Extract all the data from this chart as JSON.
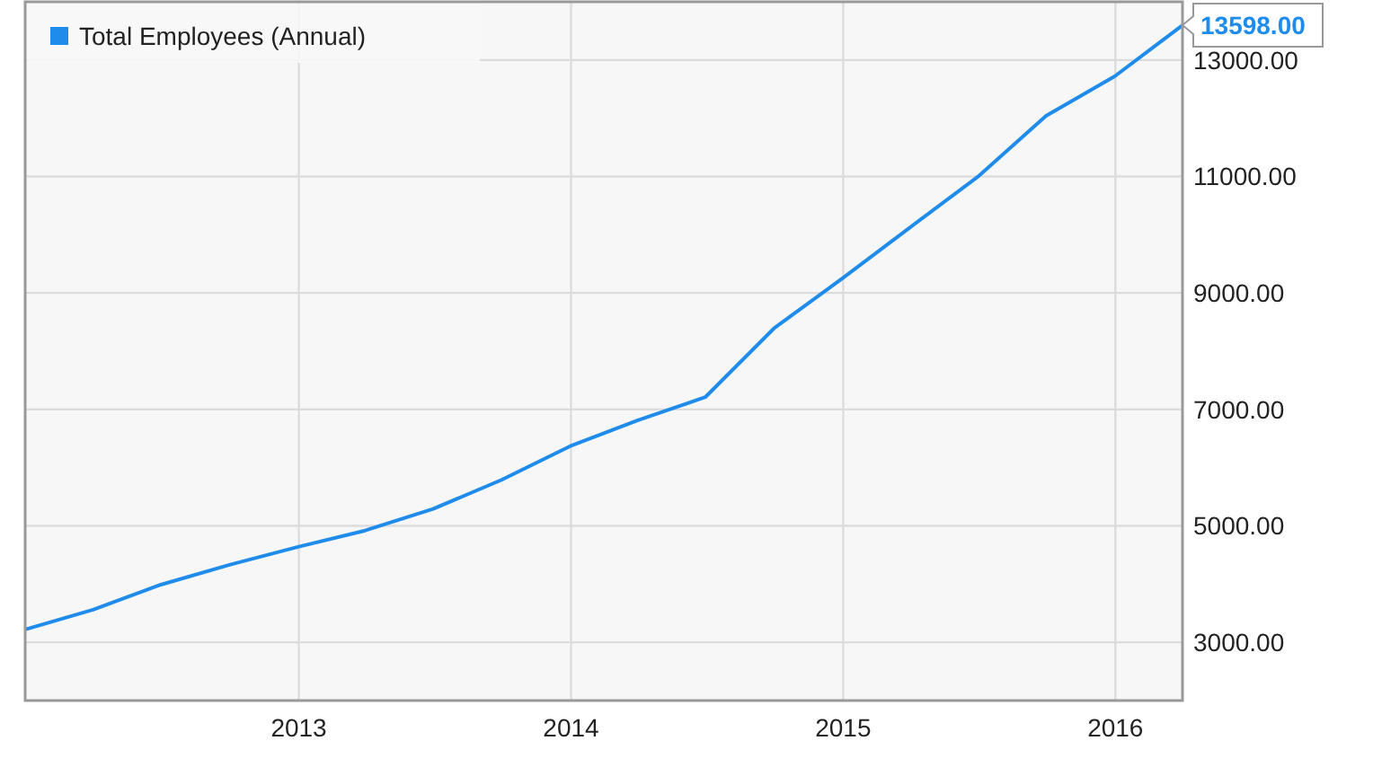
{
  "chart_data": {
    "type": "line",
    "x": [
      "2011-12-31",
      "2012-03-31",
      "2012-06-30",
      "2012-09-30",
      "2012-12-31",
      "2013-03-31",
      "2013-06-30",
      "2013-09-30",
      "2013-12-31",
      "2014-03-31",
      "2014-06-30",
      "2014-09-30",
      "2014-12-31",
      "2015-03-31",
      "2015-06-30",
      "2015-09-30",
      "2015-12-31",
      "2016-03-31"
    ],
    "series": [
      {
        "name": "Total Employees (Annual)",
        "color": "#1f8ceb",
        "values": [
          3220,
          3560,
          3990,
          4330,
          4640,
          4920,
          5290,
          5790,
          6370,
          6810,
          7210,
          8390,
          9250,
          10120,
          10990,
          12040,
          12720,
          13598
        ],
        "value_labels": [
          null,
          null,
          null,
          null,
          null,
          null,
          null,
          null,
          null,
          null,
          null,
          null,
          null,
          null,
          null,
          null,
          null,
          "13598.00"
        ]
      }
    ],
    "xlim": [
      "2011-12-31",
      "2016-03-31"
    ],
    "xticks": [
      {
        "value": "2013-01-01",
        "label": "2013"
      },
      {
        "value": "2014-01-01",
        "label": "2014"
      },
      {
        "value": "2015-01-01",
        "label": "2015"
      },
      {
        "value": "2016-01-01",
        "label": "2016"
      }
    ],
    "ylim": [
      2000,
      14000
    ],
    "yticks": [
      {
        "value": 3000,
        "label": "3000.00"
      },
      {
        "value": 5000,
        "label": "5000.00"
      },
      {
        "value": 7000,
        "label": "7000.00"
      },
      {
        "value": 9000,
        "label": "9000.00"
      },
      {
        "value": 11000,
        "label": "11000.00"
      },
      {
        "value": 13000,
        "label": "13000.00"
      }
    ],
    "grid": true,
    "legend": "top left",
    "marker": "none",
    "line_style": "solid"
  }
}
